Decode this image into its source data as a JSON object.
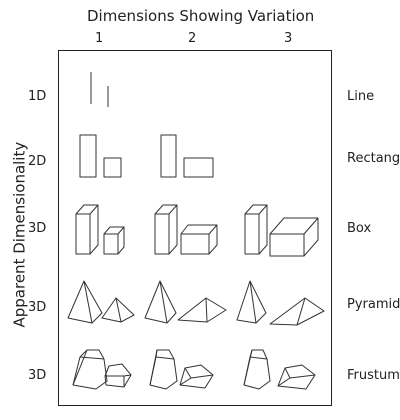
{
  "title": "Dimensions Showing Variation",
  "columns": [
    "1",
    "2",
    "3"
  ],
  "y_axis_label": "Apparent Dimensionality",
  "rows": [
    {
      "dimensionality": "1D",
      "shape": "Line"
    },
    {
      "dimensionality": "2D",
      "shape": "Rectang"
    },
    {
      "dimensionality": "3D",
      "shape": "Box"
    },
    {
      "dimensionality": "3D",
      "shape": "Pyramid"
    },
    {
      "dimensionality": "3D",
      "shape": "Frustum"
    }
  ]
}
